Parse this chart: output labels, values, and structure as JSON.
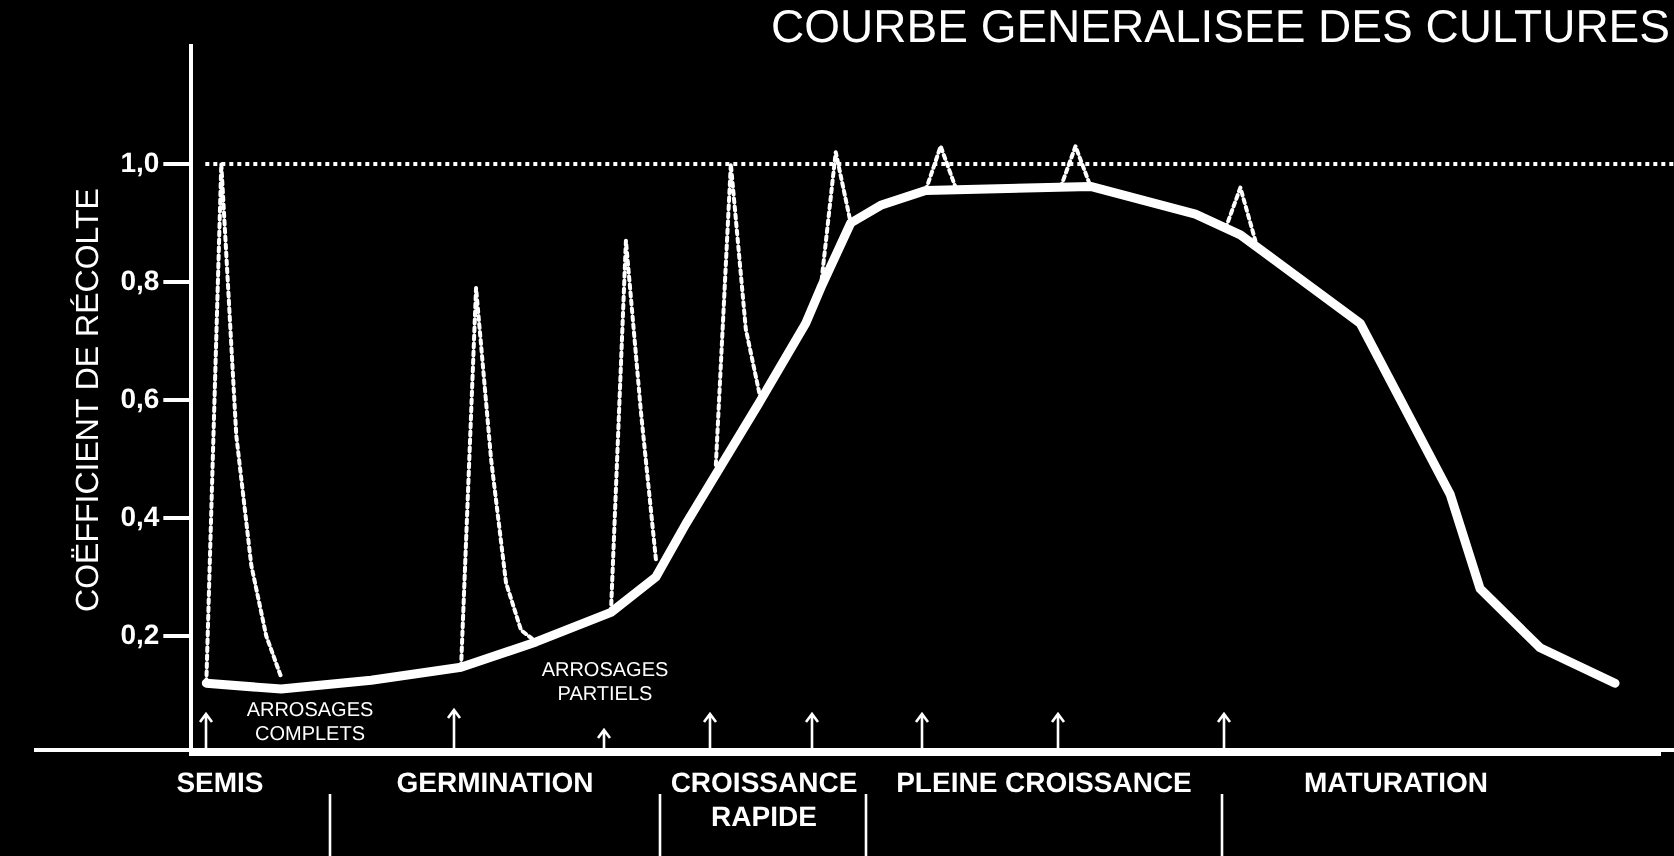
{
  "chart_data": {
    "type": "line",
    "title": "COURBE GENERALISEE DES CULTURES",
    "ylabel": "COËFFICIENT DE RÉCOLTE",
    "categories": [
      null,
      null,
      null,
      null,
      null,
      null,
      null,
      null,
      null,
      null,
      null,
      null,
      null,
      null,
      null,
      null,
      null,
      null,
      null,
      null,
      null,
      null,
      null,
      null,
      null,
      null,
      null,
      null,
      null,
      null,
      null,
      null,
      null,
      null,
      null,
      null,
      null,
      null,
      null,
      null,
      null,
      null,
      null,
      null,
      null,
      null,
      null,
      null,
      null,
      null,
      null,
      null,
      null,
      null,
      null,
      null,
      null,
      null,
      null,
      null,
      null,
      null,
      null,
      null,
      null,
      null,
      null,
      null,
      null,
      null,
      null,
      null,
      null,
      null,
      null,
      null,
      null,
      null,
      null,
      null,
      null,
      null,
      null,
      null,
      null,
      null,
      null,
      null,
      null,
      null,
      null,
      null,
      null,
      null,
      null,
      null,
      null,
      null,
      null
    ],
    "series": [
      {
        "color": "#ffffff",
        "line_style": "solid",
        "values": [
          null,
          0.12,
          null,
          null,
          null,
          null,
          0.11,
          null,
          null,
          null,
          null,
          null,
          0.125,
          null,
          null,
          null,
          null,
          null,
          0.147,
          null,
          null,
          null,
          null,
          0.19,
          null,
          null,
          null,
          null,
          0.24,
          null,
          null,
          0.3,
          null,
          0.39,
          null,
          null,
          null,
          null,
          0.6,
          null,
          null,
          0.73,
          0.79,
          null,
          0.9,
          null,
          0.93,
          null,
          null,
          0.955,
          null,
          null,
          null,
          null,
          null,
          null,
          null,
          null,
          null,
          null,
          0.962,
          null,
          null,
          null,
          null,
          null,
          null,
          0.915,
          null,
          null,
          0.88,
          null,
          null,
          null,
          null,
          null,
          null,
          null,
          0.73,
          null,
          null,
          null,
          null,
          null,
          0.44,
          null,
          0.28,
          null,
          null,
          null,
          0.18,
          null,
          null,
          null,
          null,
          0.12,
          null,
          null,
          null
        ]
      },
      {
        "color": "#ffffff",
        "line_style": "dotted",
        "values": [
          null,
          0.12,
          1.0,
          0.54,
          0.32,
          0.2,
          0.13,
          null,
          null,
          null,
          null,
          null,
          null,
          null,
          null,
          null,
          null,
          null,
          0.147,
          0.79,
          0.5,
          0.29,
          0.21,
          0.19,
          null,
          null,
          null,
          null,
          0.24,
          0.87,
          0.58,
          0.33,
          null,
          null,
          null,
          0.49,
          1.0,
          0.72,
          0.6,
          null,
          null,
          null,
          0.79,
          1.02,
          0.9,
          null,
          null,
          null,
          null,
          0.955,
          1.03,
          0.96,
          null,
          null,
          null,
          null,
          null,
          null,
          0.96,
          1.03,
          0.962,
          null,
          null,
          null,
          null,
          null,
          null,
          null,
          null,
          0.89,
          0.96,
          0.87,
          null,
          null,
          null,
          null,
          null,
          null,
          null,
          null,
          null,
          null,
          null,
          null,
          null,
          null,
          null,
          null,
          null,
          null,
          null,
          null,
          null,
          null,
          null,
          null,
          null,
          null,
          null
        ]
      }
    ],
    "ylim": [
      0,
      1.2
    ],
    "yticks": [
      {
        "value": 0.2,
        "label": "0,2"
      },
      {
        "value": 0.4,
        "label": "0,4"
      },
      {
        "value": 0.6,
        "label": "0,6"
      },
      {
        "value": 0.8,
        "label": "0,8"
      },
      {
        "value": 1.0,
        "label": "1,0"
      }
    ],
    "ref_lines": [
      {
        "axis": "y",
        "value": 1.0,
        "color": "#ffffff",
        "line_style": "dotted"
      }
    ],
    "annotations": [
      "ARROSAGES COMPLETS",
      "ARROSAGES PARTIELS",
      "SEMIS",
      "GERMINATION",
      "CROISSANCE RAPIDE",
      "PLEINE CROISSANCE",
      "MATURATION"
    ],
    "grid": false,
    "legend": false,
    "tick_labels": "y",
    "marker": "none"
  }
}
